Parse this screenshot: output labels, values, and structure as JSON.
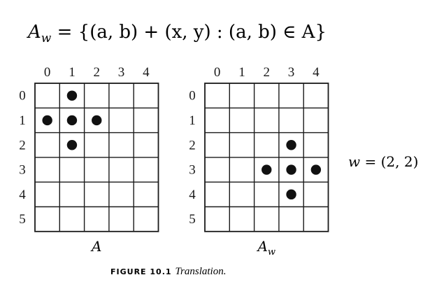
{
  "formula": {
    "lhs": "A",
    "lhs_sub": "w",
    "rhs": " = {(a, b) + (x, y) : (a, b) ∈ A}"
  },
  "grids": [
    {
      "name": "A",
      "label": "A",
      "label_sub": "",
      "col_labels": [
        "0",
        "1",
        "2",
        "3",
        "4"
      ],
      "row_labels": [
        "0",
        "1",
        "2",
        "3",
        "4",
        "5"
      ],
      "points": [
        [
          1,
          0
        ],
        [
          0,
          1
        ],
        [
          1,
          1
        ],
        [
          2,
          1
        ],
        [
          1,
          2
        ]
      ]
    },
    {
      "name": "Aw",
      "label": "A",
      "label_sub": "w",
      "col_labels": [
        "0",
        "1",
        "2",
        "3",
        "4"
      ],
      "row_labels": [
        "0",
        "1",
        "2",
        "3",
        "4",
        "5"
      ],
      "points": [
        [
          3,
          2
        ],
        [
          2,
          3
        ],
        [
          3,
          3
        ],
        [
          4,
          3
        ],
        [
          3,
          4
        ]
      ]
    }
  ],
  "vector_label": {
    "var": "w",
    "rest": " = (2, 2)"
  },
  "caption": {
    "head": "FIGURE 10.1",
    "text": "Translation."
  },
  "colors": {
    "ink": "#1a1a1a",
    "grid": "#1a1a1a",
    "dot": "#111111"
  }
}
